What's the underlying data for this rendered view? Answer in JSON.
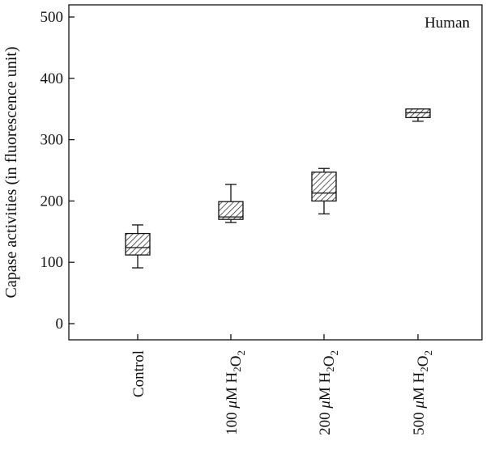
{
  "chart_data": {
    "type": "box",
    "ylabel": "Capase activities (in fluorescence unit)",
    "annotation": "Human",
    "ylim": [
      0,
      500
    ],
    "yticks": [
      0,
      100,
      200,
      300,
      400,
      500
    ],
    "categories": [
      {
        "label": "Control",
        "parts": [
          {
            "t": "Control"
          }
        ]
      },
      {
        "label": "100 μM H2O2",
        "parts": [
          {
            "t": "100 "
          },
          {
            "t": "μ",
            "it": true
          },
          {
            "t": "M H"
          },
          {
            "t": "2",
            "sub": true
          },
          {
            "t": "O"
          },
          {
            "t": "2",
            "sub": true
          }
        ]
      },
      {
        "label": "200 μM H2O2",
        "parts": [
          {
            "t": "200 "
          },
          {
            "t": "μ",
            "it": true
          },
          {
            "t": "M H"
          },
          {
            "t": "2",
            "sub": true
          },
          {
            "t": "O"
          },
          {
            "t": "2",
            "sub": true
          }
        ]
      },
      {
        "label": "500 μM H2O2",
        "parts": [
          {
            "t": "500 "
          },
          {
            "t": "μ",
            "it": true
          },
          {
            "t": "M H"
          },
          {
            "t": "2",
            "sub": true
          },
          {
            "t": "O"
          },
          {
            "t": "2",
            "sub": true
          }
        ]
      }
    ],
    "boxes": [
      {
        "min": 91,
        "q1": 112,
        "median": 124,
        "q3": 147,
        "max": 161
      },
      {
        "min": 165,
        "q1": 170,
        "median": 174,
        "q3": 199,
        "max": 227
      },
      {
        "min": 179,
        "q1": 200,
        "median": 213,
        "q3": 247,
        "max": 253
      },
      {
        "min": 330,
        "q1": 336,
        "median": 344,
        "q3": 350,
        "max": 350
      }
    ],
    "grid": false,
    "box_fill": "hatched",
    "colors": {
      "line": "#111111",
      "hatch": "#333333",
      "background": "#ffffff"
    }
  }
}
